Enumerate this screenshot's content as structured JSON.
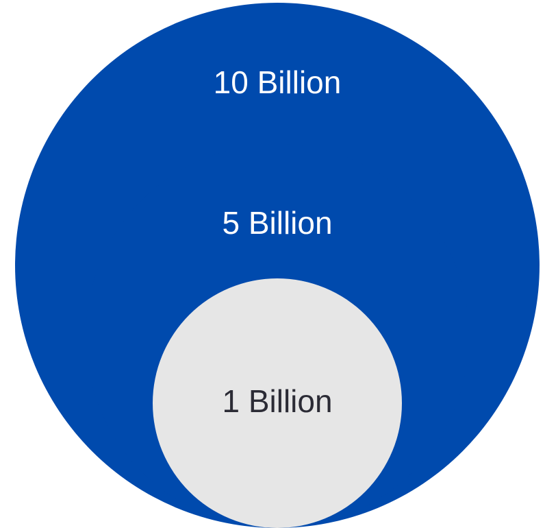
{
  "diagram": {
    "circles": [
      {
        "id": "outer",
        "label": "10 Billion",
        "fill": "#004AAD",
        "text_color": "#FFFFFF"
      },
      {
        "id": "middle",
        "label": "5 Billion",
        "fill": "#004AAD",
        "text_color": "#FFFFFF"
      },
      {
        "id": "inner",
        "label": "1 Billion",
        "fill": "#E6E6E6",
        "text_color": "#2B2B35"
      }
    ]
  }
}
